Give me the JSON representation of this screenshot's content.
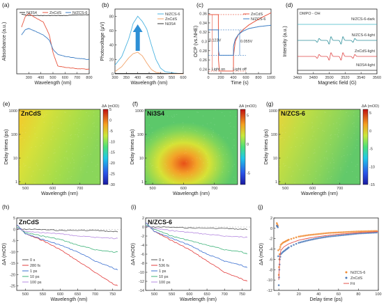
{
  "colors": {
    "ni3s4": "#333333",
    "zncds": "#e8553f",
    "nzcs6": "#3c7dc4",
    "pv_nzcs": "#4bb3e0",
    "pv_zncds": "#f2a36a",
    "arrow": "#2d8fd5",
    "t0": "#555555",
    "t280": "#e23b3b",
    "t1ps": "#3a6fd0",
    "t10": "#3fb37a",
    "t100": "#b68be0",
    "fitline": "#e5534b"
  },
  "chart_data": [
    {
      "panel": "(a)",
      "type": "line",
      "xlabel": "Wavelength (nm)",
      "ylabel": "Absorbance (a.u.)",
      "xlim": [
        200,
        800
      ],
      "xticks": [
        300,
        400,
        500,
        600,
        700,
        800
      ],
      "series": [
        {
          "name": "Ni3S4",
          "x": [
            240,
            300,
            400,
            500,
            600,
            700,
            800
          ],
          "y": [
            0.92,
            0.9,
            0.9,
            0.9,
            0.9,
            0.91,
            0.91
          ]
        },
        {
          "name": "ZnCdS",
          "x": [
            240,
            270,
            300,
            350,
            420,
            470,
            500,
            540,
            600,
            700,
            800
          ],
          "y": [
            0.72,
            0.88,
            0.93,
            0.87,
            0.8,
            0.6,
            0.33,
            0.12,
            0.1,
            0.08,
            0.07
          ]
        },
        {
          "name": "N/ZCS-6",
          "x": [
            240,
            270,
            300,
            350,
            420,
            470,
            500,
            540,
            600,
            700,
            800
          ],
          "y": [
            0.6,
            0.68,
            0.7,
            0.66,
            0.6,
            0.52,
            0.38,
            0.3,
            0.27,
            0.24,
            0.22
          ]
        }
      ]
    },
    {
      "panel": "(b)",
      "type": "line",
      "xlabel": "Wavelength (nm)",
      "ylabel": "Photovoltage (μV)",
      "xlim": [
        300,
        600
      ],
      "ylim": [
        0,
        90
      ],
      "xticks": [
        300,
        350,
        400,
        450,
        500,
        550,
        600
      ],
      "yticks": [
        0,
        20,
        40,
        60,
        80
      ],
      "series": [
        {
          "name": "N/ZCS-6",
          "x": [
            300,
            330,
            360,
            380,
            400,
            420,
            440,
            460,
            480,
            500,
            520,
            560,
            600
          ],
          "y": [
            12,
            24,
            48,
            70,
            80,
            73,
            62,
            40,
            20,
            8,
            3,
            1,
            0
          ]
        },
        {
          "name": "ZnCdS",
          "x": [
            300,
            330,
            360,
            380,
            400,
            420,
            440,
            460,
            480,
            500,
            540,
            600
          ],
          "y": [
            3,
            10,
            22,
            28,
            30,
            25,
            15,
            6,
            2,
            1,
            0,
            0
          ]
        },
        {
          "name": "Ni3S4",
          "x": [
            300,
            400,
            500,
            600
          ],
          "y": [
            0.5,
            0.5,
            0.5,
            0.5
          ]
        }
      ]
    },
    {
      "panel": "(c)",
      "type": "line",
      "xlabel": "Time (s)",
      "ylabel": "OCP (vs.NHE)",
      "xlim": [
        0,
        1000
      ],
      "ylim": [
        0.23,
        0.37
      ],
      "xticks": [
        0,
        200,
        400,
        600,
        800,
        1000
      ],
      "yticks": [
        0.24,
        0.26,
        0.28,
        0.3,
        0.32,
        0.34,
        0.36
      ],
      "annotations": {
        "delta_zncds": "0.123V",
        "delta_nzcs": "0.055V",
        "light_on": "Light on",
        "light_off": "Light off"
      },
      "series": [
        {
          "name": "ZnCdS",
          "x": [
            0,
            160,
            162,
            175,
            180,
            400,
            402,
            430,
            480,
            550,
            650,
            800,
            1000
          ],
          "y": [
            0.358,
            0.358,
            0.26,
            0.238,
            0.236,
            0.236,
            0.27,
            0.3,
            0.315,
            0.325,
            0.336,
            0.348,
            0.362
          ]
        },
        {
          "name": "N/ZCS-6",
          "x": [
            0,
            160,
            162,
            175,
            180,
            400,
            402,
            430,
            480,
            550,
            650,
            800,
            1000
          ],
          "y": [
            0.325,
            0.325,
            0.28,
            0.27,
            0.27,
            0.27,
            0.29,
            0.305,
            0.315,
            0.322,
            0.328,
            0.332,
            0.335
          ]
        }
      ]
    },
    {
      "panel": "(d)",
      "type": "line",
      "title": "DMPO - OH",
      "xlabel": "Magnetic field (G)",
      "ylabel": "Intensity (a.u.)",
      "xlim": [
        3460,
        3560
      ],
      "xticks": [
        3460,
        3480,
        3500,
        3520,
        3540,
        3560
      ],
      "series": [
        {
          "name": "N/ZCS-6-dark",
          "peaks": []
        },
        {
          "name": "N/ZCS-6-light",
          "peaks": [
            3486,
            3501,
            3516,
            3531
          ]
        },
        {
          "name": "ZnCdS-light",
          "peaks": [
            3486,
            3501,
            3516,
            3531
          ]
        },
        {
          "name": "Ni3S4-light",
          "peaks": []
        }
      ]
    },
    {
      "panel": "(e)",
      "type": "heatmap",
      "title": "ZnCdS",
      "xlabel": "Wavelength (nm)",
      "ylabel": "Delay times (ps)",
      "colorbar_label": "ΔA (mOD)",
      "xticks": [
        500,
        600,
        700
      ],
      "yticks": [
        "1000",
        "100",
        "10",
        "1"
      ],
      "cbar_ticks": [
        5,
        0,
        -5,
        -10,
        -15,
        -20,
        -25,
        -30
      ],
      "clim": [
        -30,
        5
      ]
    },
    {
      "panel": "(f)",
      "type": "heatmap",
      "title": "Ni3S4",
      "xlabel": "Wavelength (nm)",
      "ylabel": "Delay times (ps)",
      "colorbar_label": "ΔA (mOD)",
      "xticks": [
        500,
        600,
        700
      ],
      "yticks": [
        "1000",
        "100",
        "10",
        "1"
      ],
      "cbar_ticks": [
        5,
        0,
        -5
      ],
      "clim": [
        -7,
        6
      ]
    },
    {
      "panel": "(g)",
      "type": "heatmap",
      "title": "N/ZCS-6",
      "xlabel": "Wavelength (nm)",
      "ylabel": "Delay times (ps)",
      "colorbar_label": "ΔA (mOD)",
      "xticks": [
        500,
        600,
        700
      ],
      "yticks": [
        "1000",
        "100",
        "10",
        "1"
      ],
      "cbar_ticks": [
        5,
        0,
        -5,
        -10,
        -15
      ],
      "clim": [
        -15,
        6
      ]
    },
    {
      "panel": "(h)",
      "type": "line",
      "title": "ZnCdS",
      "xlabel": "Wavelength (nm)",
      "ylabel": "ΔA (mOD)",
      "xlim": [
        475,
        775
      ],
      "ylim": [
        -27,
        5
      ],
      "xticks": [
        500,
        550,
        600,
        650,
        700,
        750
      ],
      "yticks": [
        5,
        0,
        -5,
        -10,
        -15,
        -20,
        -25
      ],
      "series": [
        {
          "name": "0 s",
          "x": [
            475,
            520,
            600,
            700,
            750,
            765
          ],
          "y": [
            0,
            0,
            -0.5,
            -0.5,
            -1,
            -1
          ]
        },
        {
          "name": "280 fs",
          "x": [
            475,
            500,
            550,
            600,
            650,
            700,
            750,
            765
          ],
          "y": [
            2,
            -2,
            -5,
            -9,
            -14,
            -19,
            -24,
            -25
          ]
        },
        {
          "name": "1 ps",
          "x": [
            475,
            500,
            550,
            600,
            650,
            700,
            750,
            765
          ],
          "y": [
            2,
            -2,
            -4.5,
            -7,
            -10,
            -14,
            -17,
            -18
          ]
        },
        {
          "name": "10 ps",
          "x": [
            475,
            500,
            550,
            600,
            650,
            700,
            750,
            765
          ],
          "y": [
            1,
            -1.5,
            -3,
            -4.5,
            -7,
            -9,
            -10,
            -10
          ]
        },
        {
          "name": "100 ps",
          "x": [
            475,
            500,
            550,
            600,
            650,
            700,
            750,
            765
          ],
          "y": [
            0.5,
            -1,
            -1.5,
            -2,
            -3,
            -3.5,
            -4,
            -4
          ]
        }
      ]
    },
    {
      "panel": "(i)",
      "type": "line",
      "title": "N/ZCS-6",
      "xlabel": "Wavelength (nm)",
      "ylabel": "ΔA (mOD)",
      "xlim": [
        475,
        775
      ],
      "ylim": [
        -14,
        2
      ],
      "xticks": [
        500,
        550,
        600,
        650,
        700,
        750
      ],
      "yticks": [
        2,
        0,
        -2,
        -4,
        -6,
        -8,
        -10,
        -12,
        -14
      ],
      "series": [
        {
          "name": "0 s",
          "x": [
            475,
            520,
            600,
            700,
            750,
            765
          ],
          "y": [
            0,
            0,
            -0.2,
            -0.3,
            -0.5,
            -0.5
          ]
        },
        {
          "name": "536 fs",
          "x": [
            475,
            500,
            550,
            600,
            650,
            700,
            750,
            765
          ],
          "y": [
            1,
            -1,
            -3,
            -5,
            -7.5,
            -10,
            -11.5,
            -12
          ]
        },
        {
          "name": "1 ps",
          "x": [
            475,
            500,
            550,
            600,
            650,
            700,
            750,
            765
          ],
          "y": [
            1,
            -1,
            -2.5,
            -4,
            -6,
            -7.5,
            -8.5,
            -9
          ]
        },
        {
          "name": "10 ps",
          "x": [
            475,
            500,
            550,
            600,
            650,
            700,
            750,
            765
          ],
          "y": [
            0.5,
            -0.5,
            -2,
            -3,
            -4,
            -5,
            -5.5,
            -6
          ]
        },
        {
          "name": "100 ps",
          "x": [
            475,
            500,
            550,
            600,
            650,
            700,
            750,
            765
          ],
          "y": [
            0.2,
            -0.3,
            -0.8,
            -1.2,
            -1.6,
            -2,
            -2.2,
            -2.3
          ]
        }
      ]
    },
    {
      "panel": "(j)",
      "type": "scatter",
      "xlabel": "Delay time (ps)",
      "ylabel": "ΔA (mOD)",
      "xlim": [
        -5,
        100
      ],
      "ylim": [
        -12,
        2
      ],
      "xticks": [
        0,
        20,
        40,
        60,
        80,
        100
      ],
      "yticks": [
        2,
        0,
        -2,
        -4,
        -6,
        -8,
        -10,
        -12
      ],
      "series": [
        {
          "name": "N/ZCS-6",
          "x": [
            -2,
            -1,
            0,
            0.5,
            1,
            2,
            4,
            6,
            8,
            10,
            15,
            20,
            30,
            40,
            50,
            60,
            70,
            80,
            90,
            100
          ],
          "y": [
            1,
            0.5,
            -9,
            -6,
            -4,
            -3.2,
            -2.8,
            -2.6,
            -2.4,
            -2.2,
            -1.9,
            -1.6,
            -1.3,
            -1.1,
            -0.9,
            -0.8,
            -0.7,
            -0.6,
            -0.55,
            -0.5
          ]
        },
        {
          "name": "ZnCdS",
          "x": [
            -2,
            -1,
            0,
            0.5,
            1,
            2,
            4,
            6,
            8,
            10,
            15,
            20,
            30,
            40,
            50,
            60,
            70,
            80,
            90,
            100
          ],
          "y": [
            0.5,
            0.2,
            -11,
            -8,
            -6,
            -5,
            -4.6,
            -4.3,
            -4,
            -3.7,
            -3.2,
            -2.8,
            -2.3,
            -1.9,
            -1.6,
            -1.4,
            -1.2,
            -1,
            -0.9,
            -0.8
          ]
        },
        {
          "name": "Fit",
          "x": [
            0,
            1,
            2,
            5,
            10,
            20,
            30,
            40,
            50,
            60,
            70,
            80,
            90,
            100
          ],
          "y": [
            -10,
            -5.5,
            -4.3,
            -3.6,
            -3.0,
            -2.3,
            -1.9,
            -1.6,
            -1.35,
            -1.15,
            -1,
            -0.85,
            -0.75,
            -0.65
          ]
        }
      ]
    }
  ]
}
